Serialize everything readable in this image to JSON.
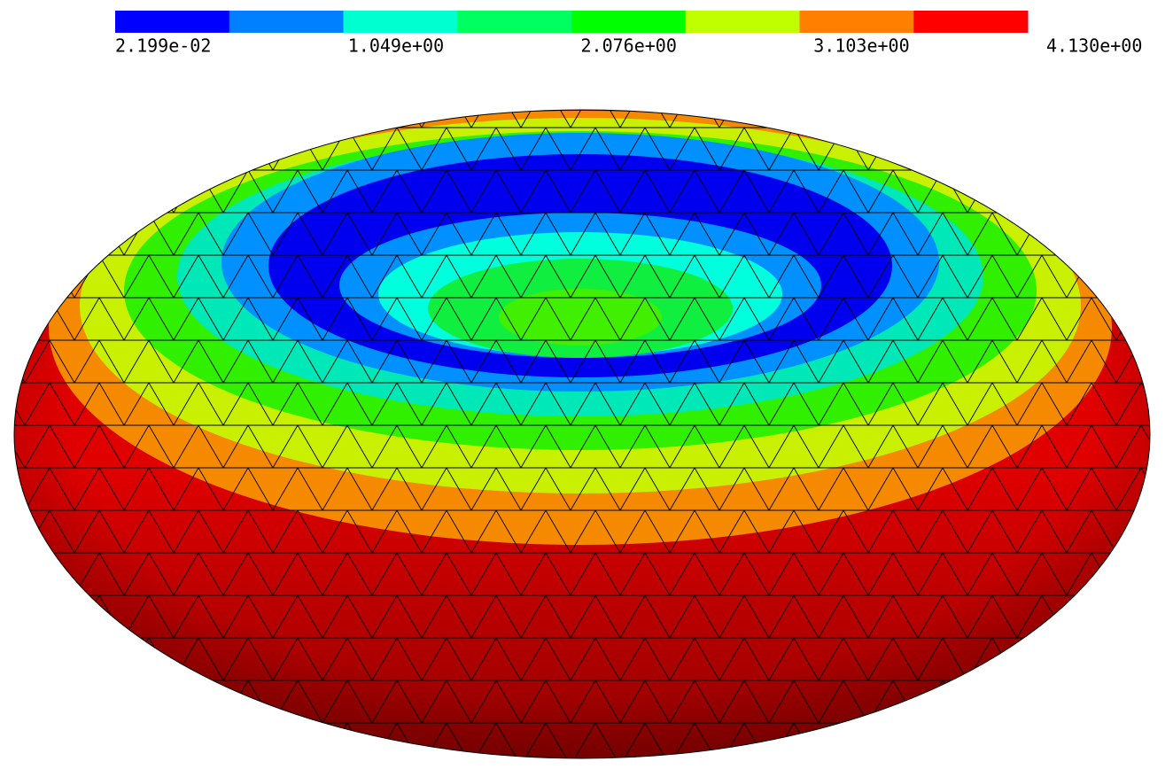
{
  "colorbar": {
    "labels": [
      "2.199e-02",
      "1.049e+00",
      "2.076e+00",
      "3.103e+00",
      "4.130e+00"
    ],
    "colors": [
      "#0000ff",
      "#0080ff",
      "#00ffd0",
      "#00ff60",
      "#00ff00",
      "#c0ff00",
      "#ff7f00",
      "#ff0000"
    ]
  }
}
